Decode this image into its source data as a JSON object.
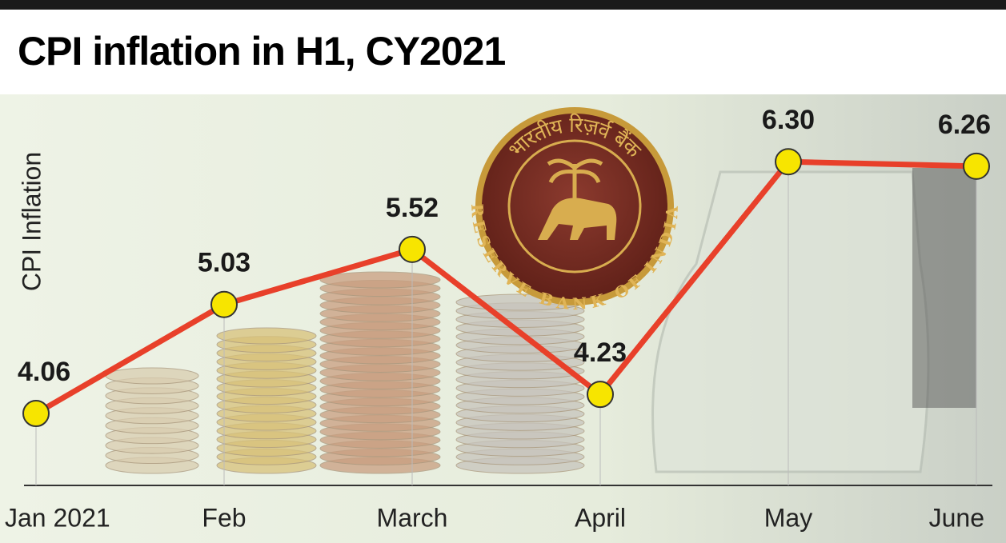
{
  "chart_data": {
    "type": "line",
    "title": "CPI inflation in H1, CY2021",
    "y_label": "CPI Inflation",
    "categories": [
      "Jan 2021",
      "Feb",
      "March",
      "April",
      "May",
      "June"
    ],
    "series": [
      {
        "name": "CPI Inflation",
        "color": "#e8402a",
        "values": [
          4.06,
          5.03,
          5.52,
          4.23,
          6.3,
          6.26
        ],
        "value_labels": [
          "4.06",
          "5.03",
          "5.52",
          "4.23",
          "6.30",
          "6.26"
        ]
      }
    ],
    "ylim": [
      3.42,
      6.7
    ],
    "emblem": {
      "text": "RESERVE BANK OF INDIA",
      "hindi": "भारतीय रिज़र्व बैंक"
    }
  }
}
